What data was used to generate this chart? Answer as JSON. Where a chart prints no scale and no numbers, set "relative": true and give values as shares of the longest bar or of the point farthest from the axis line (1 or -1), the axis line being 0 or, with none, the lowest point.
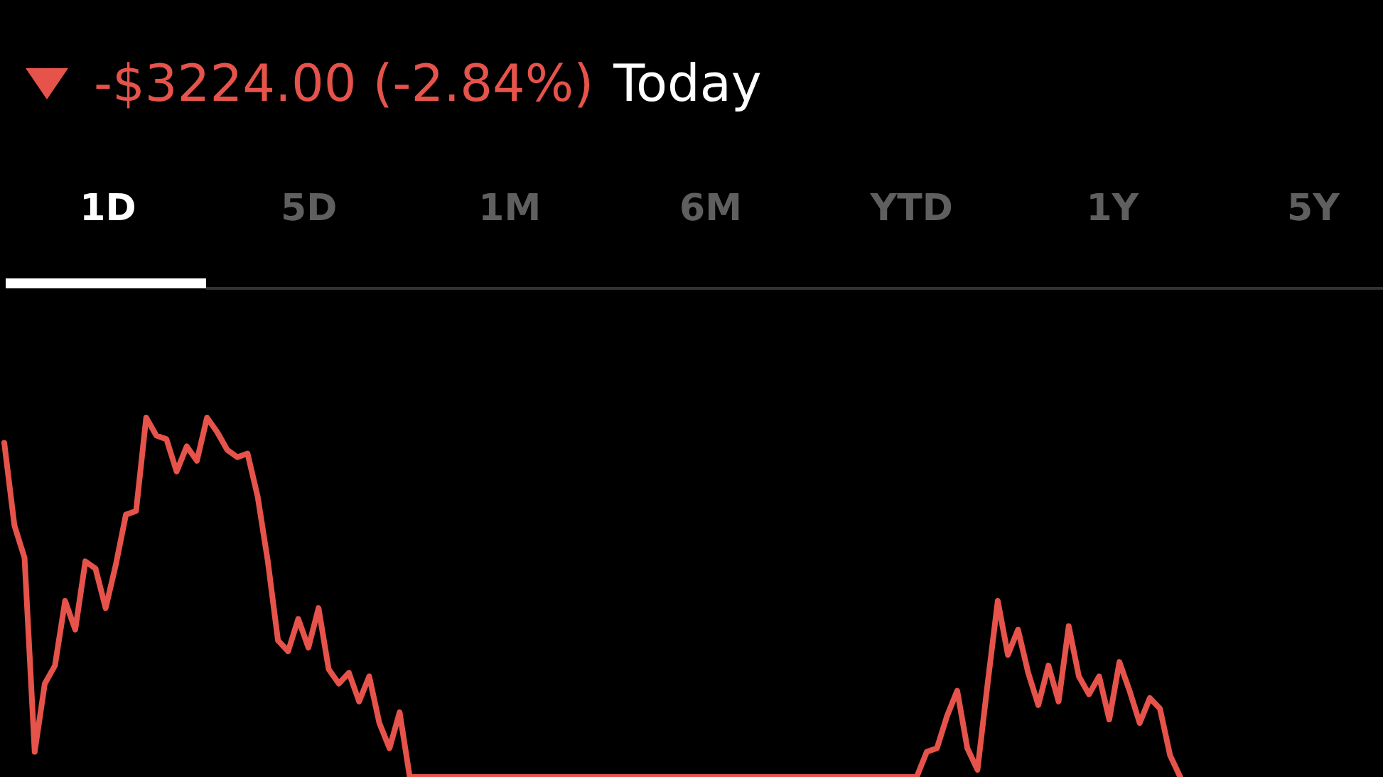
{
  "chart_data": {
    "type": "line",
    "subtitle": "-$3224.00 (-2.84%)",
    "annotations": [
      "Today",
      "1D",
      "5D",
      "1M",
      "6M",
      "YTD",
      "1Y",
      "5Y"
    ],
    "relative": true,
    "marker": "none",
    "grid": false,
    "categories": [
      null,
      null,
      null,
      null,
      null,
      null,
      null,
      null,
      null,
      null,
      null,
      null,
      null,
      null,
      null,
      null,
      null,
      null,
      null,
      null,
      null,
      null,
      null,
      null,
      null,
      null,
      null,
      null,
      null,
      null,
      null,
      null,
      null,
      null,
      null,
      null,
      null,
      null,
      null,
      null,
      null,
      null,
      null,
      null,
      null,
      null,
      null,
      null,
      null,
      null,
      null,
      null,
      null,
      null,
      null,
      null,
      null,
      null,
      null,
      null,
      null,
      null,
      null,
      null,
      null,
      null,
      null,
      null,
      null,
      null,
      null,
      null,
      null,
      null,
      null,
      null,
      null,
      null,
      null,
      null,
      null,
      null,
      null,
      null,
      null,
      null,
      null,
      null,
      null,
      null,
      null,
      null,
      null,
      null,
      null,
      null,
      null,
      null,
      null,
      null,
      null,
      null,
      null,
      null,
      null,
      null,
      null,
      null,
      null,
      null,
      null,
      null,
      null,
      null,
      null,
      null,
      null,
      null,
      null,
      null,
      null,
      null,
      null,
      null,
      null,
      null,
      null,
      null,
      null,
      null,
      null,
      null,
      null,
      null,
      null,
      null,
      null
    ],
    "series": [
      {
        "color": "#e5534b",
        "values": [
          0.93,
          0.7,
          0.61,
          0.07,
          0.26,
          0.31,
          0.49,
          0.41,
          0.6,
          0.58,
          0.47,
          0.59,
          0.73,
          0.74,
          1.0,
          0.95,
          0.94,
          0.85,
          0.92,
          0.88,
          1.0,
          0.96,
          0.91,
          0.89,
          0.9,
          0.78,
          0.6,
          0.38,
          0.35,
          0.44,
          0.36,
          0.47,
          0.3,
          0.26,
          0.29,
          0.21,
          0.28,
          0.15,
          0.08,
          0.18,
          0.0,
          null,
          null,
          null,
          null,
          null,
          null,
          null,
          null,
          null,
          null,
          null,
          null,
          null,
          null,
          null,
          null,
          null,
          null,
          null,
          null,
          null,
          null,
          null,
          null,
          null,
          null,
          null,
          null,
          null,
          null,
          null,
          null,
          null,
          null,
          null,
          null,
          null,
          null,
          null,
          null,
          null,
          null,
          null,
          null,
          null,
          null,
          null,
          null,
          null,
          0.0,
          0.07,
          0.08,
          0.17,
          0.24,
          0.08,
          0.02,
          0.26,
          0.49,
          0.34,
          0.41,
          0.29,
          0.2,
          0.31,
          0.21,
          0.42,
          0.28,
          0.23,
          0.28,
          0.16,
          0.32,
          0.24,
          0.15,
          0.22,
          0.19,
          0.06,
          0.0,
          null,
          null,
          null,
          null,
          null,
          null,
          null,
          null,
          null,
          null,
          null,
          null,
          null,
          null,
          null,
          null,
          null,
          null,
          null,
          null
        ]
      }
    ]
  }
}
